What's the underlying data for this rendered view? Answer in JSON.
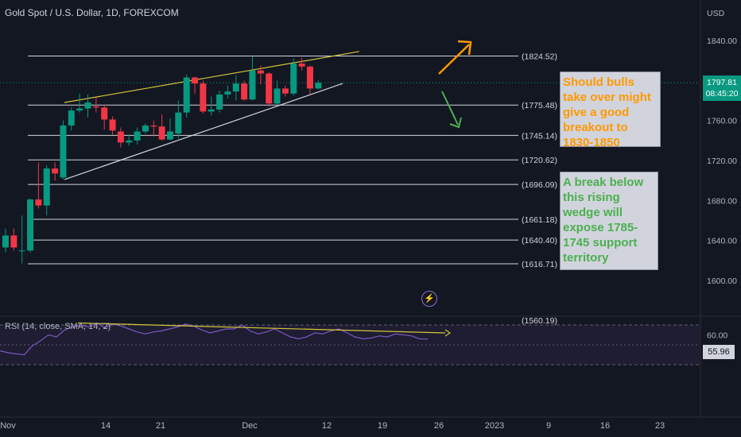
{
  "header": {
    "title": "Gold Spot / U.S. Dollar, 1D, FOREXCOM"
  },
  "currency": "USD",
  "rsi_label": "RSI (14, close, SMA, 14, 2)",
  "last_price": {
    "value": "1797.81",
    "countdown": "08:45:20"
  },
  "rsi_value": "55.96",
  "notes": {
    "bullish": "Should bulls take over might give a good breakout to 1830-1850",
    "bearish": "A break below this rising wedge will expose 1785-1745 support territory"
  },
  "icons": {
    "alert": "lightning-bolt-icon"
  },
  "colors": {
    "up": "#089981",
    "down": "#f23645",
    "orange": "#ff9800",
    "green": "#4caf50",
    "rsi": "#7e57c2",
    "trend": "#d6c63a"
  },
  "chart_data": [
    {
      "type": "candlestick",
      "title": "Gold Spot / U.S. Dollar, 1D, FOREXCOM",
      "ylim": [
        1560,
        1860
      ],
      "y_ticks": [
        "1840.00",
        "1800.00",
        "1760.00",
        "1720.00",
        "1680.00",
        "1640.00",
        "1600.00"
      ],
      "x_ticks": [
        "Nov",
        "14",
        "21",
        "Dec",
        "12",
        "19",
        "26",
        "2023",
        "9",
        "16",
        "23"
      ],
      "fib_levels": [
        "(1824.52)",
        "(1775.48)",
        "(1745.14)",
        "(1720.62)",
        "(1696.09)",
        "(1661.18)",
        "(1640.40)",
        "(1616.71)",
        "(1560.19)"
      ],
      "candles": [
        {
          "date": "Nov 1",
          "open": 1633,
          "high": 1652,
          "low": 1628,
          "close": 1645
        },
        {
          "date": "Nov 2",
          "open": 1645,
          "high": 1652,
          "low": 1630,
          "close": 1633
        },
        {
          "date": "Nov 3",
          "open": 1630,
          "high": 1665,
          "low": 1617,
          "close": 1630
        },
        {
          "date": "Nov 4",
          "open": 1630,
          "high": 1682,
          "low": 1628,
          "close": 1681
        },
        {
          "date": "Nov 7",
          "open": 1681,
          "high": 1718,
          "low": 1672,
          "close": 1675
        },
        {
          "date": "Nov 8",
          "open": 1675,
          "high": 1715,
          "low": 1665,
          "close": 1712
        },
        {
          "date": "Nov 9",
          "open": 1712,
          "high": 1718,
          "low": 1700,
          "close": 1707
        },
        {
          "date": "Nov 10",
          "open": 1703,
          "high": 1760,
          "low": 1701,
          "close": 1755
        },
        {
          "date": "Nov 11",
          "open": 1755,
          "high": 1773,
          "low": 1750,
          "close": 1770
        },
        {
          "date": "Nov 14",
          "open": 1770,
          "high": 1787,
          "low": 1768,
          "close": 1772
        },
        {
          "date": "Nov 15",
          "open": 1772,
          "high": 1786,
          "low": 1763,
          "close": 1778
        },
        {
          "date": "Nov 16",
          "open": 1774,
          "high": 1783,
          "low": 1768,
          "close": 1773
        },
        {
          "date": "Nov 17",
          "open": 1773,
          "high": 1776,
          "low": 1751,
          "close": 1761
        },
        {
          "date": "Nov 18",
          "open": 1761,
          "high": 1764,
          "low": 1746,
          "close": 1750
        },
        {
          "date": "Nov 21",
          "open": 1749,
          "high": 1753,
          "low": 1733,
          "close": 1738
        },
        {
          "date": "Nov 22",
          "open": 1738,
          "high": 1746,
          "low": 1735,
          "close": 1740
        },
        {
          "date": "Nov 23",
          "open": 1740,
          "high": 1753,
          "low": 1736,
          "close": 1749
        },
        {
          "date": "Nov 24",
          "open": 1749,
          "high": 1757,
          "low": 1747,
          "close": 1755
        },
        {
          "date": "Nov 25",
          "open": 1755,
          "high": 1760,
          "low": 1744,
          "close": 1754
        },
        {
          "date": "Nov 28",
          "open": 1754,
          "high": 1766,
          "low": 1740,
          "close": 1741
        },
        {
          "date": "Nov 29",
          "open": 1741,
          "high": 1762,
          "low": 1740,
          "close": 1749
        },
        {
          "date": "Nov 30",
          "open": 1747,
          "high": 1780,
          "low": 1742,
          "close": 1768
        },
        {
          "date": "Dec 1",
          "open": 1768,
          "high": 1806,
          "low": 1763,
          "close": 1803
        },
        {
          "date": "Dec 2",
          "open": 1803,
          "high": 1804,
          "low": 1787,
          "close": 1797
        },
        {
          "date": "Dec 5",
          "open": 1797,
          "high": 1800,
          "low": 1767,
          "close": 1769
        },
        {
          "date": "Dec 6",
          "open": 1769,
          "high": 1784,
          "low": 1765,
          "close": 1771
        },
        {
          "date": "Dec 7",
          "open": 1771,
          "high": 1790,
          "low": 1768,
          "close": 1786
        },
        {
          "date": "Dec 8",
          "open": 1786,
          "high": 1795,
          "low": 1782,
          "close": 1789
        },
        {
          "date": "Dec 9",
          "open": 1789,
          "high": 1805,
          "low": 1780,
          "close": 1797
        },
        {
          "date": "Dec 12",
          "open": 1797,
          "high": 1800,
          "low": 1780,
          "close": 1781
        },
        {
          "date": "Dec 13",
          "open": 1781,
          "high": 1824,
          "low": 1780,
          "close": 1810
        },
        {
          "date": "Dec 14",
          "open": 1810,
          "high": 1815,
          "low": 1796,
          "close": 1807
        },
        {
          "date": "Dec 15",
          "open": 1807,
          "high": 1808,
          "low": 1774,
          "close": 1777
        },
        {
          "date": "Dec 16",
          "open": 1777,
          "high": 1800,
          "low": 1775,
          "close": 1792
        },
        {
          "date": "Dec 19",
          "open": 1792,
          "high": 1795,
          "low": 1784,
          "close": 1787
        },
        {
          "date": "Dec 20",
          "open": 1787,
          "high": 1822,
          "low": 1785,
          "close": 1817
        },
        {
          "date": "Dec 21",
          "open": 1817,
          "high": 1823,
          "low": 1810,
          "close": 1814
        },
        {
          "date": "Dec 22",
          "open": 1814,
          "high": 1815,
          "low": 1786,
          "close": 1792
        },
        {
          "date": "Dec 23",
          "open": 1792,
          "high": 1800,
          "low": 1791,
          "close": 1797.81
        }
      ],
      "trendlines": [
        {
          "from": {
            "date": "Nov 9",
            "price": 1778
          },
          "to": {
            "date": "Dec 28",
            "price": 1829
          },
          "color": "#d6c63a"
        },
        {
          "from": {
            "date": "Nov 9",
            "price": 1701
          },
          "to": {
            "date": "Dec 26",
            "price": 1797
          },
          "color": "#d1d4dc"
        }
      ]
    },
    {
      "type": "line",
      "title": "RSI (14, close, SMA, 14, 2)",
      "ylim": [
        20,
        80
      ],
      "y_ticks": [
        "60.00",
        "40.00"
      ],
      "bands": [
        70,
        30
      ],
      "series": [
        {
          "values": [
            44,
            42,
            41,
            40,
            49,
            54,
            60,
            58,
            65,
            68,
            70,
            68,
            72,
            67,
            71,
            69,
            66,
            63,
            61,
            63,
            64,
            66,
            68,
            71,
            69,
            65,
            62,
            64,
            66,
            66,
            70,
            64,
            61,
            63,
            66,
            62,
            58,
            56,
            58,
            62,
            61,
            64,
            66,
            62,
            58,
            56,
            57,
            59,
            58,
            61,
            60,
            59,
            56,
            55.96
          ]
        }
      ],
      "trendline": {
        "from_value": 72,
        "to_value": 62,
        "color": "#d6c63a"
      }
    }
  ]
}
